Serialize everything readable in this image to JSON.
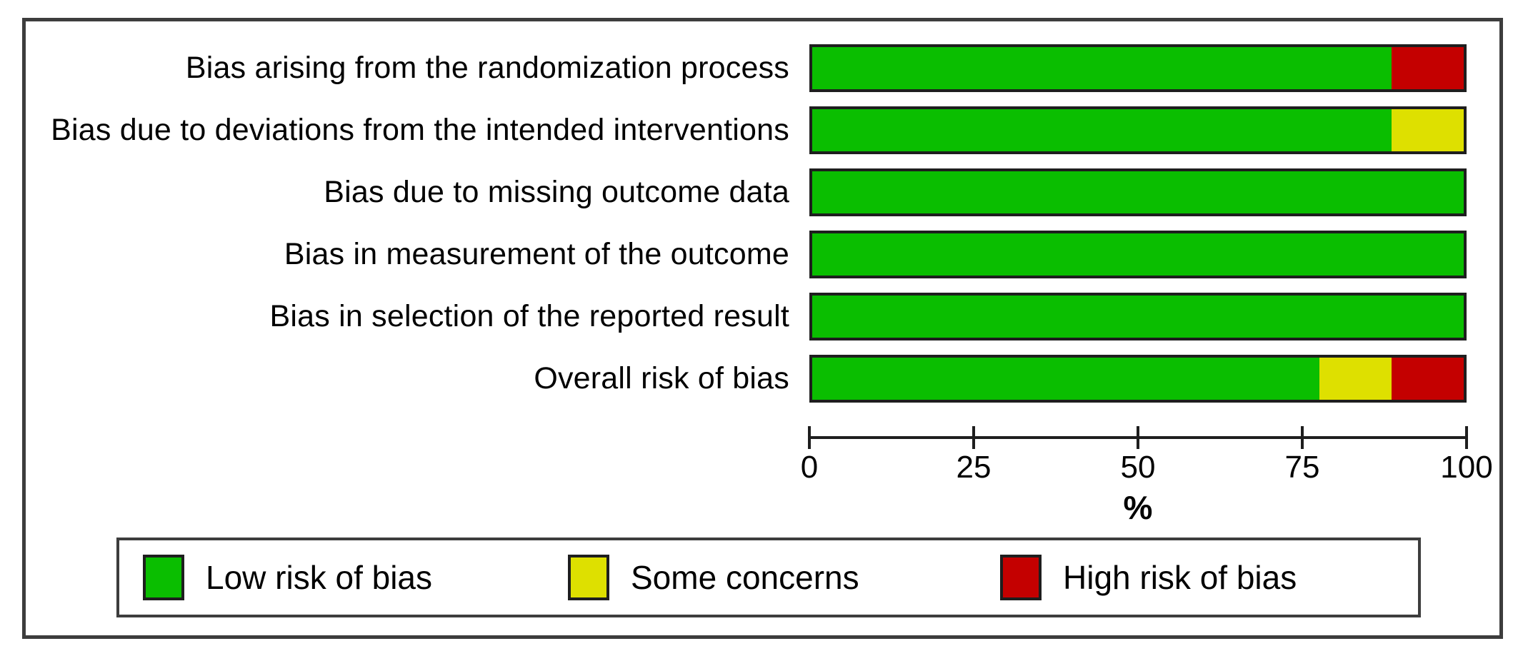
{
  "chart_data": {
    "type": "bar",
    "orientation": "horizontal",
    "stacked": true,
    "categories": [
      "Bias arising from the randomization process",
      "Bias due to deviations from the intended interventions",
      "Bias due to missing outcome data",
      "Bias in measurement of the outcome",
      "Bias in selection of the reported result",
      "Overall risk of bias"
    ],
    "series": [
      {
        "name": "Low risk of bias",
        "color": "#0abe00",
        "values": [
          88.9,
          88.9,
          100,
          100,
          100,
          77.8
        ]
      },
      {
        "name": "Some concerns",
        "color": "#dee000",
        "values": [
          0,
          11.1,
          0,
          0,
          0,
          11.1
        ]
      },
      {
        "name": "High risk of bias",
        "color": "#c40000",
        "values": [
          11.1,
          0,
          0,
          0,
          0,
          11.1
        ]
      }
    ],
    "xlabel": "%",
    "x_ticks": [
      0,
      25,
      50,
      75,
      100
    ],
    "xlim": [
      0,
      100
    ],
    "grid": false,
    "legend_position": "bottom"
  }
}
